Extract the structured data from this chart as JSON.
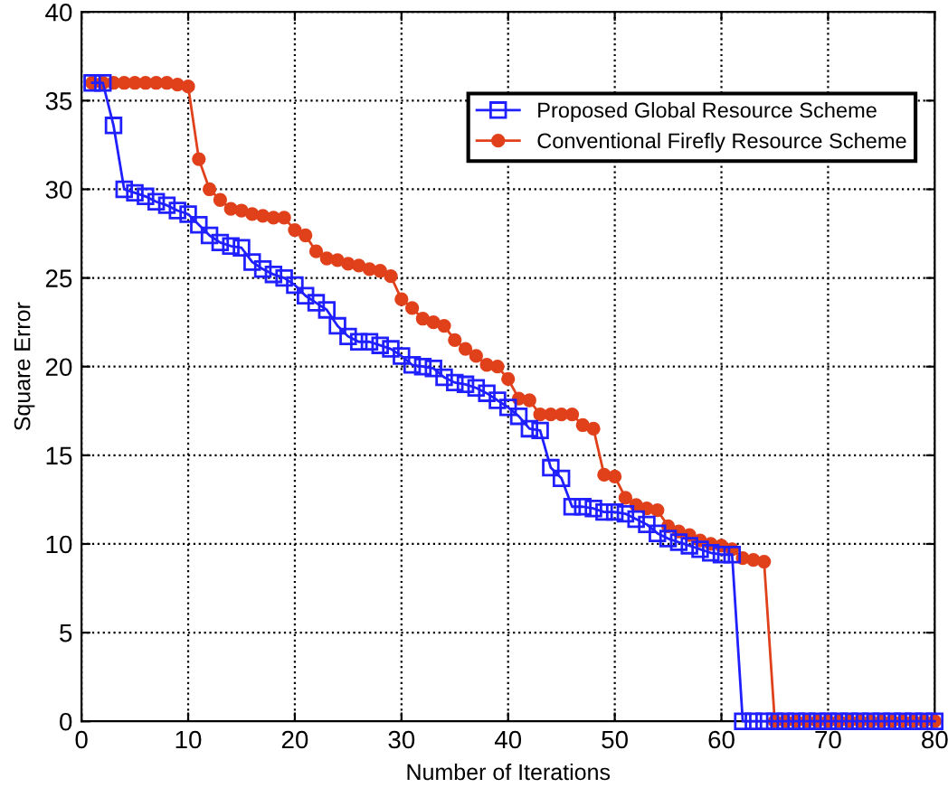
{
  "chart_data": {
    "type": "line",
    "xlabel": "Number of Iterations",
    "ylabel": "Square Error",
    "x": [
      1,
      2,
      3,
      4,
      5,
      6,
      7,
      8,
      9,
      10,
      11,
      12,
      13,
      14,
      15,
      16,
      17,
      18,
      19,
      20,
      21,
      22,
      23,
      24,
      25,
      26,
      27,
      28,
      29,
      30,
      31,
      32,
      33,
      34,
      35,
      36,
      37,
      38,
      39,
      40,
      41,
      42,
      43,
      44,
      45,
      46,
      47,
      48,
      49,
      50,
      51,
      52,
      53,
      54,
      55,
      56,
      57,
      58,
      59,
      60,
      61,
      62,
      63,
      64,
      65,
      66,
      67,
      68,
      69,
      70,
      71,
      72,
      73,
      74,
      75,
      76,
      77,
      78,
      79,
      80
    ],
    "series": [
      {
        "name": "Proposed Global Resource Scheme",
        "color": "#1f1fff",
        "marker": "square",
        "values": [
          36,
          36,
          33.6,
          30,
          29.8,
          29.6,
          29.3,
          29.1,
          28.8,
          28.6,
          28,
          27.4,
          27,
          26.8,
          26.7,
          25.9,
          25.5,
          25.2,
          25,
          24.6,
          24,
          23.6,
          23.2,
          22.3,
          21.7,
          21.4,
          21.4,
          21.2,
          21,
          20.6,
          20.1,
          20,
          19.9,
          19.4,
          19.1,
          19,
          18.8,
          18.5,
          18.1,
          17.7,
          17.2,
          16.5,
          16.4,
          14.3,
          13.7,
          12.1,
          12.1,
          12,
          11.8,
          11.8,
          11.7,
          11.4,
          11.1,
          10.6,
          10.3,
          10.1,
          9.9,
          9.7,
          9.5,
          9.4,
          9.4,
          0,
          0,
          0,
          0,
          0,
          0,
          0,
          0,
          0,
          0,
          0,
          0,
          0,
          0,
          0,
          0,
          0,
          0,
          0
        ]
      },
      {
        "name": "Conventional Firefly Resource Scheme",
        "color": "#e0401a",
        "marker": "circle",
        "values": [
          36,
          36,
          36,
          36,
          36,
          36,
          36,
          36,
          35.9,
          35.8,
          31.7,
          30,
          29.4,
          28.9,
          28.8,
          28.6,
          28.5,
          28.4,
          28.4,
          27.7,
          27.4,
          26.5,
          26.1,
          26,
          25.8,
          25.7,
          25.5,
          25.4,
          25.1,
          23.8,
          23.3,
          22.7,
          22.5,
          22.3,
          21.5,
          21,
          20.6,
          20.1,
          20,
          19.3,
          18.2,
          18.1,
          17.3,
          17.3,
          17.3,
          17.3,
          16.7,
          16.5,
          13.9,
          13.8,
          12.6,
          12.2,
          12,
          11.9,
          11,
          10.7,
          10.5,
          10.2,
          10,
          9.9,
          9.7,
          9.2,
          9.1,
          9,
          0,
          0,
          0,
          0,
          0,
          0,
          0,
          0,
          0,
          0,
          0,
          0,
          0,
          0,
          0,
          0
        ]
      }
    ],
    "xlim": [
      0,
      80
    ],
    "xticks": [
      0,
      10,
      20,
      30,
      40,
      50,
      60,
      70,
      80
    ],
    "ylim": [
      0,
      40
    ],
    "yticks": [
      0,
      5,
      10,
      15,
      20,
      25,
      30,
      35,
      40
    ],
    "grid": true,
    "legend": "top right",
    "line_style": "solid"
  }
}
